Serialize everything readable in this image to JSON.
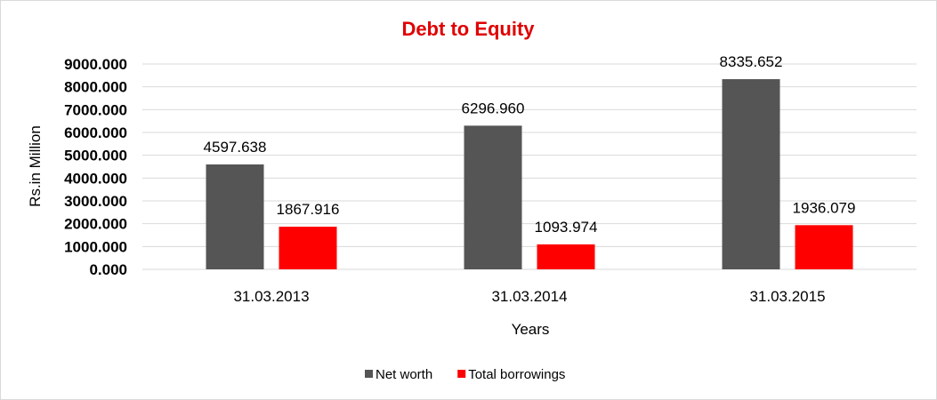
{
  "chart_data": {
    "type": "bar",
    "title": "Debt to Equity",
    "title_color": "#e00000",
    "xlabel": "Years",
    "ylabel": "Rs.in Million",
    "categories": [
      "31.03.2013",
      "31.03.2014",
      "31.03.2015"
    ],
    "series": [
      {
        "name": "Net worth",
        "color": "#555555",
        "values": [
          4597.638,
          6296.96,
          8335.652
        ],
        "labels": [
          "4597.638",
          "6296.960",
          "8335.652"
        ]
      },
      {
        "name": "Total borrowings",
        "color": "#ff0000",
        "values": [
          1867.916,
          1093.974,
          1936.079
        ],
        "labels": [
          "1867.916",
          "1093.974",
          "1936.079"
        ]
      }
    ],
    "ylim": [
      0,
      9000
    ],
    "yticks": [
      "0.000",
      "1000.000",
      "2000.000",
      "3000.000",
      "4000.000",
      "5000.000",
      "6000.000",
      "7000.000",
      "8000.000",
      "9000.000"
    ],
    "grid": true,
    "gridline_color": "#d9d9d9",
    "legend_position": "bottom"
  }
}
